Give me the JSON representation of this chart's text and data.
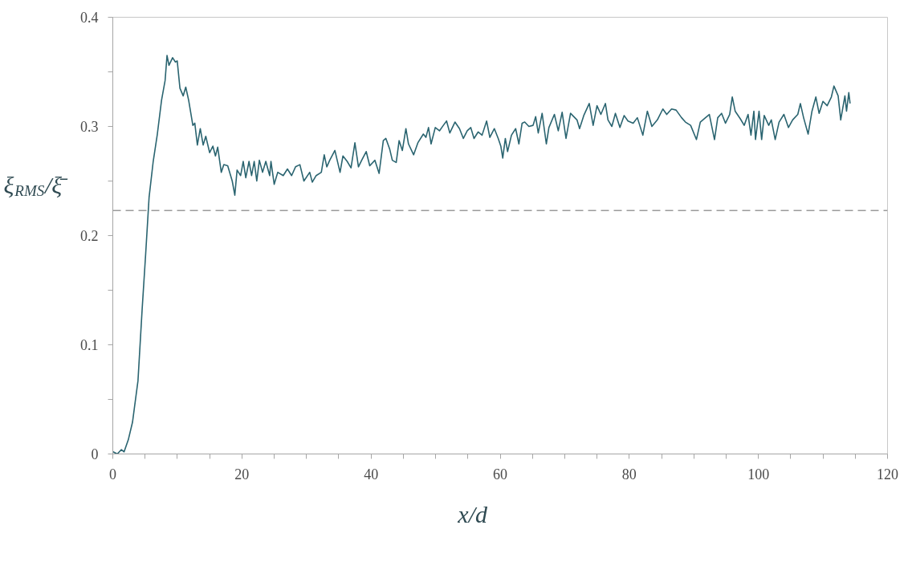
{
  "chart_data": {
    "type": "line",
    "xlabel": "x/d",
    "ylabel": "ξ$_{RMS}$/ξ̄",
    "xlim": [
      0,
      120
    ],
    "ylim": [
      0,
      0.4
    ],
    "xticks": [
      0,
      {
        "value": 5,
        "label": null
      },
      {
        "value": 10,
        "label": null
      },
      {
        "value": 15,
        "label": null
      },
      20,
      {
        "value": 25,
        "label": null
      },
      {
        "value": 30,
        "label": null
      },
      {
        "value": 35,
        "label": null
      },
      40,
      {
        "value": 45,
        "label": null
      },
      {
        "value": 50,
        "label": null
      },
      {
        "value": 55,
        "label": null
      },
      60,
      {
        "value": 65,
        "label": null
      },
      {
        "value": 70,
        "label": null
      },
      {
        "value": 75,
        "label": null
      },
      80,
      {
        "value": 85,
        "label": null
      },
      {
        "value": 90,
        "label": null
      },
      {
        "value": 95,
        "label": null
      },
      100,
      {
        "value": 105,
        "label": null
      },
      {
        "value": 110,
        "label": null
      },
      {
        "value": 115,
        "label": null
      },
      120
    ],
    "yticks": [
      0,
      {
        "value": 0.05,
        "label": null
      },
      0.1,
      {
        "value": 0.15,
        "label": null
      },
      0.2,
      {
        "value": 0.25,
        "label": null
      },
      0.3,
      {
        "value": 0.35,
        "label": null
      },
      0.4
    ],
    "x": [
      0.04,
      0.7,
      1.33,
      1.75,
      2.4,
      3.05,
      3.9,
      4.55,
      5.1,
      5.62,
      6.26,
      6.9,
      7.55,
      8.1,
      8.4,
      8.7,
      9.26,
      9.7,
      9.98,
      10.4,
      10.9,
      11.3,
      11.75,
      12.4,
      12.7,
      13.1,
      13.55,
      14.0,
      14.4,
      15.0,
      15.5,
      15.9,
      16.25,
      16.8,
      17.2,
      17.8,
      18.5,
      18.9,
      19.25,
      19.8,
      20.2,
      20.6,
      21.1,
      21.5,
      21.9,
      22.3,
      22.7,
      23.2,
      23.7,
      24.3,
      24.5,
      25.0,
      25.55,
      26.4,
      27.05,
      27.7,
      28.3,
      28.98,
      29.6,
      30.5,
      30.9,
      31.5,
      32.3,
      32.75,
      33.15,
      33.6,
      34.4,
      35.2,
      35.65,
      36.3,
      36.9,
      37.5,
      38.05,
      38.55,
      39.25,
      39.8,
      40.6,
      41.25,
      41.9,
      42.3,
      42.9,
      43.3,
      43.9,
      44.35,
      44.85,
      45.4,
      45.8,
      46.6,
      47.25,
      48.1,
      48.5,
      48.9,
      49.3,
      49.95,
      50.6,
      51.2,
      51.7,
      52.2,
      53.0,
      53.7,
      54.3,
      54.9,
      55.45,
      55.95,
      56.6,
      57.2,
      57.9,
      58.4,
      59.1,
      59.7,
      60.1,
      60.4,
      60.8,
      61.15,
      61.75,
      62.4,
      62.9,
      63.4,
      63.8,
      64.45,
      65.1,
      65.5,
      65.9,
      66.5,
      67.15,
      67.55,
      68.4,
      69.0,
      69.6,
      70.2,
      70.9,
      71.9,
      72.3,
      72.95,
      73.8,
      74.4,
      75.0,
      75.6,
      76.3,
      76.7,
      77.3,
      77.85,
      78.55,
      79.2,
      79.8,
      80.6,
      81.25,
      82.1,
      82.8,
      83.5,
      84.35,
      85.2,
      85.8,
      86.55,
      87.25,
      88.1,
      88.7,
      89.5,
      90.4,
      91.0,
      91.8,
      92.4,
      93.2,
      93.7,
      94.3,
      94.9,
      95.55,
      95.95,
      96.4,
      97.2,
      97.8,
      98.4,
      98.85,
      99.3,
      99.55,
      100.1,
      100.5,
      100.9,
      101.6,
      102.0,
      102.6,
      103.2,
      103.95,
      104.65,
      105.3,
      106.1,
      106.5,
      107.0,
      107.7,
      108.3,
      108.9,
      109.4,
      110.0,
      110.65,
      111.3,
      111.7,
      112.35,
      112.75,
      113.4,
      113.65,
      114.0,
      114.2
    ],
    "series": [
      {
        "color": "#2a6470",
        "values": [
          0.002,
          0.0,
          0.004,
          0.002,
          0.013,
          0.029,
          0.067,
          0.133,
          0.184,
          0.235,
          0.268,
          0.293,
          0.324,
          0.342,
          0.365,
          0.356,
          0.363,
          0.359,
          0.36,
          0.335,
          0.328,
          0.336,
          0.324,
          0.301,
          0.303,
          0.283,
          0.298,
          0.283,
          0.291,
          0.276,
          0.282,
          0.273,
          0.281,
          0.258,
          0.265,
          0.264,
          0.25,
          0.237,
          0.26,
          0.255,
          0.268,
          0.253,
          0.268,
          0.255,
          0.268,
          0.25,
          0.269,
          0.258,
          0.268,
          0.255,
          0.268,
          0.247,
          0.258,
          0.255,
          0.261,
          0.255,
          0.263,
          0.265,
          0.25,
          0.258,
          0.249,
          0.255,
          0.258,
          0.274,
          0.263,
          0.269,
          0.278,
          0.258,
          0.273,
          0.268,
          0.262,
          0.285,
          0.263,
          0.269,
          0.277,
          0.264,
          0.269,
          0.257,
          0.287,
          0.289,
          0.279,
          0.269,
          0.267,
          0.287,
          0.278,
          0.298,
          0.284,
          0.274,
          0.285,
          0.293,
          0.29,
          0.299,
          0.284,
          0.299,
          0.296,
          0.301,
          0.305,
          0.294,
          0.304,
          0.298,
          0.289,
          0.296,
          0.299,
          0.289,
          0.295,
          0.292,
          0.305,
          0.29,
          0.298,
          0.289,
          0.282,
          0.271,
          0.289,
          0.277,
          0.292,
          0.298,
          0.284,
          0.303,
          0.304,
          0.3,
          0.301,
          0.309,
          0.294,
          0.312,
          0.284,
          0.299,
          0.311,
          0.296,
          0.313,
          0.289,
          0.312,
          0.306,
          0.298,
          0.31,
          0.321,
          0.301,
          0.319,
          0.311,
          0.321,
          0.306,
          0.3,
          0.312,
          0.299,
          0.31,
          0.305,
          0.303,
          0.308,
          0.292,
          0.314,
          0.3,
          0.306,
          0.316,
          0.311,
          0.316,
          0.315,
          0.308,
          0.304,
          0.301,
          0.288,
          0.304,
          0.308,
          0.311,
          0.288,
          0.308,
          0.312,
          0.303,
          0.311,
          0.327,
          0.314,
          0.307,
          0.301,
          0.311,
          0.292,
          0.314,
          0.288,
          0.314,
          0.288,
          0.31,
          0.301,
          0.306,
          0.288,
          0.304,
          0.311,
          0.299,
          0.306,
          0.311,
          0.321,
          0.308,
          0.293,
          0.314,
          0.327,
          0.312,
          0.323,
          0.319,
          0.327,
          0.337,
          0.328,
          0.306,
          0.328,
          0.314,
          0.331,
          0.321
        ]
      }
    ],
    "ref_lines": [
      {
        "axis": "y",
        "value": 0.223,
        "color": "#9a9a9a",
        "line_style": "dashed"
      }
    ]
  }
}
